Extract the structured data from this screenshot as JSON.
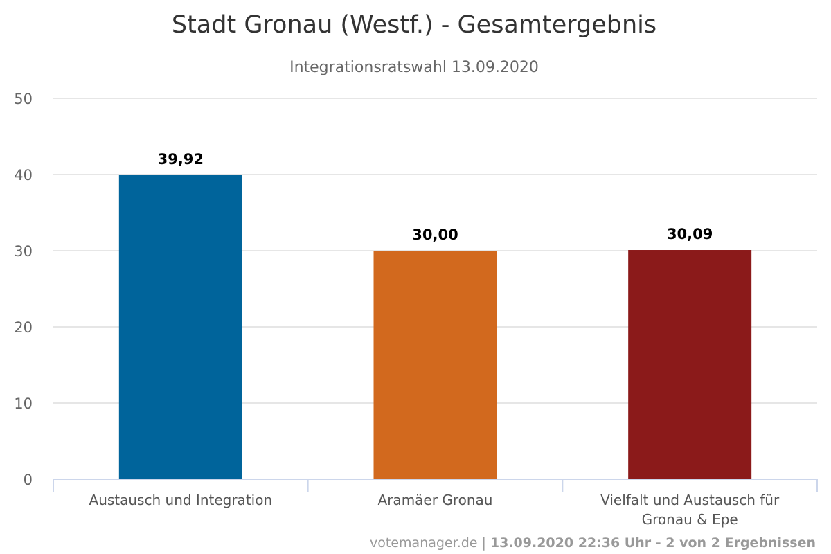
{
  "chart_data": {
    "type": "bar",
    "title": "Stadt Gronau (Westf.) - Gesamtergebnis",
    "subtitle": "Integrationsratswahl 13.09.2020",
    "categories": [
      [
        "Austausch und Integration"
      ],
      [
        "Aramäer Gronau"
      ],
      [
        "Vielfalt und Austausch für",
        "Gronau & Epe"
      ]
    ],
    "values": [
      39.92,
      30.0,
      30.09
    ],
    "value_labels": [
      "39,92",
      "30,00",
      "30,09"
    ],
    "colors": [
      "#00649b",
      "#d2691e",
      "#8b1a1a"
    ],
    "ylim": [
      0,
      50
    ],
    "yticks": [
      "0",
      "10",
      "20",
      "30",
      "40",
      "50"
    ],
    "grid": true,
    "legend": "none"
  },
  "footer": {
    "source": "votemanager.de",
    "separator": "|",
    "info": "13.09.2020 22:36 Uhr - 2 von 2 Ergebnissen"
  }
}
